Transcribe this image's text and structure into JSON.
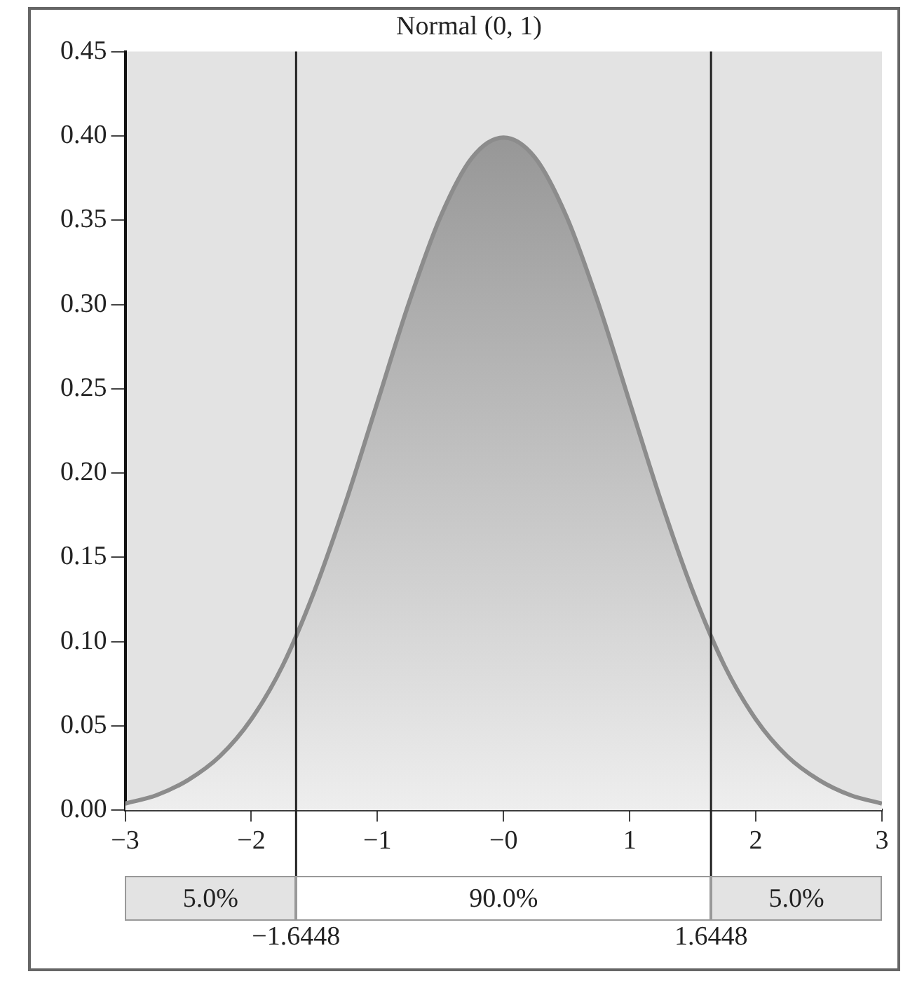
{
  "chart_data": {
    "type": "area",
    "title": "Normal (0, 1)",
    "x": [
      -3,
      -2.75,
      -2.5,
      -2.25,
      -2,
      -1.75,
      -1.5,
      -1.25,
      -1,
      -0.75,
      -0.5,
      -0.25,
      0,
      0.25,
      0.5,
      0.75,
      1,
      1.25,
      1.5,
      1.75,
      2,
      2.25,
      2.5,
      2.75,
      3
    ],
    "series": [
      {
        "color": "#8c8c8c",
        "values": [
          0.004,
          0.009,
          0.018,
          0.032,
          0.054,
          0.086,
          0.13,
          0.183,
          0.242,
          0.301,
          0.352,
          0.387,
          0.399,
          0.387,
          0.352,
          0.301,
          0.242,
          0.183,
          0.13,
          0.086,
          0.054,
          0.032,
          0.018,
          0.009,
          0.004
        ]
      }
    ],
    "xlim": [
      -3,
      3
    ],
    "xticks": [
      {
        "value": -3,
        "label": "−3"
      },
      {
        "value": -2,
        "label": "−2"
      },
      {
        "value": -1,
        "label": "−1"
      },
      {
        "value": 0,
        "label": "−0"
      },
      1,
      2,
      3
    ],
    "ylim": [
      0,
      0.45
    ],
    "yticks": [
      {
        "value": 0,
        "label": "0.00"
      },
      {
        "value": 0.05,
        "label": "0.05"
      },
      {
        "value": 0.1,
        "label": "0.10"
      },
      {
        "value": 0.15,
        "label": "0.15"
      },
      {
        "value": 0.2,
        "label": "0.20"
      },
      {
        "value": 0.25,
        "label": "0.25"
      },
      {
        "value": 0.3,
        "label": "0.30"
      },
      {
        "value": 0.35,
        "label": "0.35"
      },
      {
        "value": 0.4,
        "label": "0.40"
      },
      {
        "value": 0.45,
        "label": "0.45"
      }
    ],
    "ref_lines": [
      {
        "axis": "x",
        "value": -1.6448,
        "label": "−1.6448",
        "color": "#222222"
      },
      {
        "axis": "x",
        "value": 1.6448,
        "label": "1.6448",
        "color": "#222222"
      }
    ],
    "annotations": [
      "5.0%",
      "90.0%",
      "5.0%"
    ],
    "grid": false,
    "legend": false,
    "marker": "none",
    "line_style": "solid"
  }
}
